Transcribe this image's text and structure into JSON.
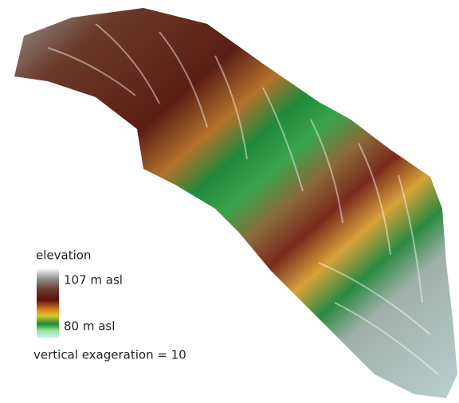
{
  "legend": {
    "title": "elevation",
    "max_label": "107 m asl",
    "min_label": "80 m asl"
  },
  "note": "vertical exageration = 10"
}
